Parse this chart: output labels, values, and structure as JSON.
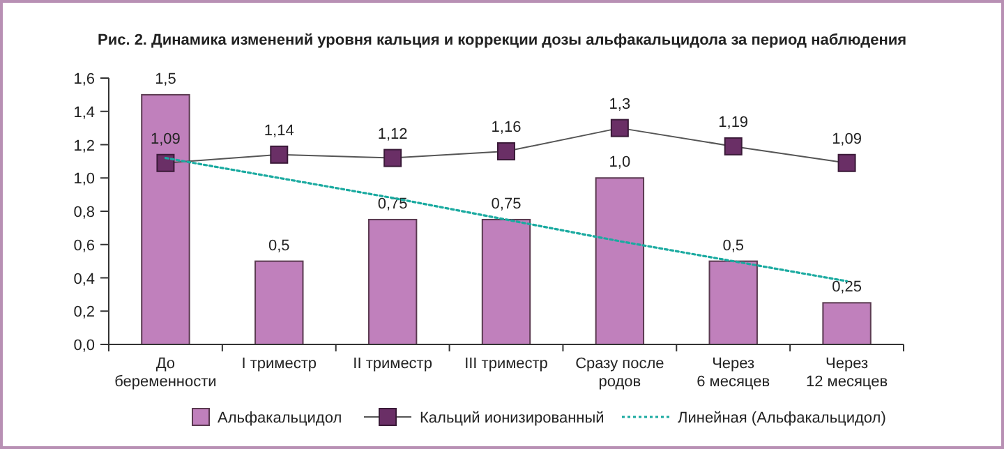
{
  "chart_data": {
    "type": "bar",
    "title": "Рис. 2. Динамика изменений уровня кальция и коррекции дозы альфакальцидола за период наблюдения",
    "categories": [
      "До\nбеременности",
      "I триместр",
      "II триместр",
      "III триместр",
      "Сразу после\nродов",
      "Через\n6 месяцев",
      "Через\n12 месяцев"
    ],
    "series": [
      {
        "name": "Альфакальцидол",
        "color": "#c080bc",
        "values": [
          1.5,
          0.5,
          0.75,
          0.75,
          1.0,
          0.5,
          0.25
        ],
        "value_labels": [
          "1,5",
          "0,5",
          "0,75",
          "0,75",
          "1,0",
          "0,5",
          "0,25"
        ]
      },
      {
        "name": "Кальций ионизированный",
        "type": "line",
        "color": "#6a2f66",
        "marker": "square",
        "line_style": "solid",
        "values": [
          1.09,
          1.14,
          1.12,
          1.16,
          1.3,
          1.19,
          1.09
        ],
        "value_labels": [
          "1,09",
          "1,14",
          "1,12",
          "1,16",
          "1,3",
          "1,19",
          "1,09"
        ]
      },
      {
        "name": "Линейная (Альфакальцидол)",
        "type": "line",
        "color": "#1aaaa0",
        "marker": "none",
        "line_style": "dotted",
        "values": [
          1.12,
          1.0,
          0.88,
          0.75,
          0.62,
          0.5,
          0.38
        ]
      }
    ],
    "ylim": [
      0,
      1.6
    ],
    "yticks": [
      {
        "value": 0,
        "label": "0,0"
      },
      {
        "value": 0.2,
        "label": "0,2"
      },
      {
        "value": 0.4,
        "label": "0,4"
      },
      {
        "value": 0.6,
        "label": "0,6"
      },
      {
        "value": 0.8,
        "label": "0,8"
      },
      {
        "value": 1.0,
        "label": "1,0"
      },
      {
        "value": 1.2,
        "label": "1,2"
      },
      {
        "value": 1.4,
        "label": "1,4"
      },
      {
        "value": 1.6,
        "label": "1,6"
      }
    ],
    "grid": false,
    "legend": "bottom"
  }
}
